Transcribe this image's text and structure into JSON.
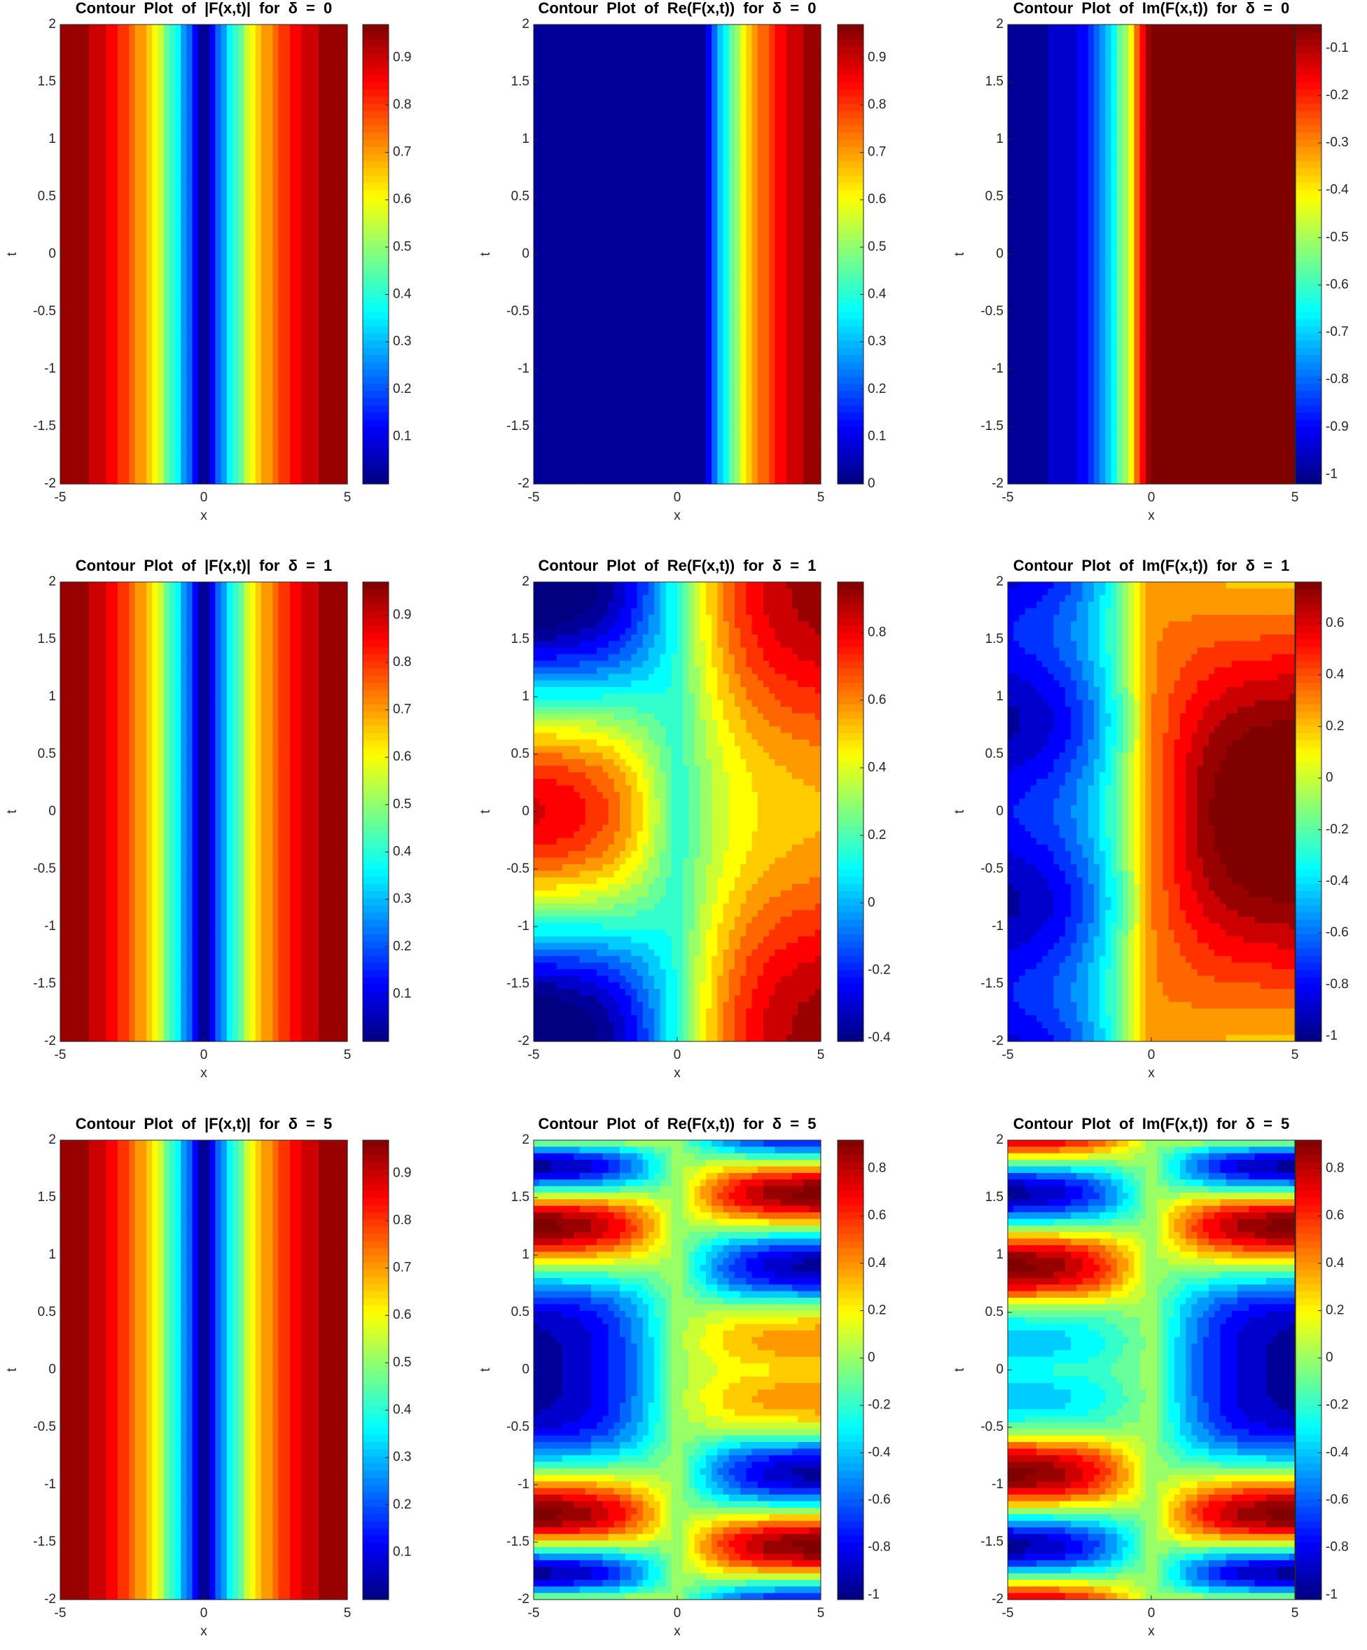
{
  "chart_data": [
    {
      "type": "contour",
      "title": "Contour Plot of |F(x,t)| for δ = 0",
      "xlabel": "x",
      "ylabel": "t",
      "xlim": [
        -5,
        5
      ],
      "xticks": [
        -5,
        0,
        5
      ],
      "ylim": [
        -2,
        2
      ],
      "yticks": [
        -2,
        -1.5,
        -1,
        -0.5,
        0,
        0.5,
        1,
        1.5,
        2
      ],
      "clim": [
        0,
        0.97
      ],
      "cticks": [
        0.1,
        0.2,
        0.3,
        0.4,
        0.5,
        0.6,
        0.7,
        0.8,
        0.9
      ],
      "colormap": "jet"
    },
    {
      "type": "contour",
      "title": "Contour Plot of Re(F(x,t)) for δ = 0",
      "xlabel": "x",
      "ylabel": "t",
      "xlim": [
        -5,
        5
      ],
      "xticks": [
        -5,
        0,
        5
      ],
      "ylim": [
        -2,
        2
      ],
      "yticks": [
        -2,
        -1.5,
        -1,
        -0.5,
        0,
        0.5,
        1,
        1.5,
        2
      ],
      "clim": [
        0,
        0.97
      ],
      "cticks": [
        0,
        0.1,
        0.2,
        0.3,
        0.4,
        0.5,
        0.6,
        0.7,
        0.8,
        0.9
      ],
      "colormap": "jet"
    },
    {
      "type": "contour",
      "title": "Contour Plot of Im(F(x,t)) for δ = 0",
      "xlabel": "x",
      "ylabel": "t",
      "xlim": [
        -5,
        5
      ],
      "xticks": [
        -5,
        0,
        5
      ],
      "ylim": [
        -2,
        2
      ],
      "yticks": [
        -2,
        -1.5,
        -1,
        -0.5,
        0,
        0.5,
        1,
        1.5,
        2
      ],
      "clim": [
        -1.02,
        -0.05
      ],
      "cticks": [
        -1,
        -0.9,
        -0.8,
        -0.7,
        -0.6,
        -0.5,
        -0.4,
        -0.3,
        -0.2,
        -0.1
      ],
      "colormap": "jet"
    },
    {
      "type": "contour",
      "title": "Contour Plot of |F(x,t)| for δ = 1",
      "xlabel": "x",
      "ylabel": "t",
      "xlim": [
        -5,
        5
      ],
      "xticks": [
        -5,
        0,
        5
      ],
      "ylim": [
        -2,
        2
      ],
      "yticks": [
        -2,
        -1.5,
        -1,
        -0.5,
        0,
        0.5,
        1,
        1.5,
        2
      ],
      "clim": [
        0,
        0.97
      ],
      "cticks": [
        0.1,
        0.2,
        0.3,
        0.4,
        0.5,
        0.6,
        0.7,
        0.8,
        0.9
      ],
      "colormap": "jet"
    },
    {
      "type": "contour",
      "title": "Contour Plot of Re(F(x,t)) for δ = 1",
      "xlabel": "x",
      "ylabel": "t",
      "xlim": [
        -5,
        5
      ],
      "xticks": [
        -5,
        0,
        5
      ],
      "ylim": [
        -2,
        2
      ],
      "yticks": [
        -2,
        -1.5,
        -1,
        -0.5,
        0,
        0.5,
        1,
        1.5,
        2
      ],
      "clim": [
        -0.41,
        0.95
      ],
      "cticks": [
        -0.4,
        -0.2,
        0,
        0.2,
        0.4,
        0.6,
        0.8
      ],
      "colormap": "jet"
    },
    {
      "type": "contour",
      "title": "Contour Plot of Im(F(x,t)) for δ = 1",
      "xlabel": "x",
      "ylabel": "t",
      "xlim": [
        -5,
        5
      ],
      "xticks": [
        -5,
        0,
        5
      ],
      "ylim": [
        -2,
        2
      ],
      "yticks": [
        -2,
        -1.5,
        -1,
        -0.5,
        0,
        0.5,
        1,
        1.5,
        2
      ],
      "clim": [
        -1.02,
        0.76
      ],
      "cticks": [
        -1,
        -0.8,
        -0.6,
        -0.4,
        -0.2,
        0,
        0.2,
        0.4,
        0.6
      ],
      "colormap": "jet"
    },
    {
      "type": "contour",
      "title": "Contour Plot of |F(x,t)| for δ = 5",
      "xlabel": "x",
      "ylabel": "t",
      "xlim": [
        -5,
        5
      ],
      "xticks": [
        -5,
        0,
        5
      ],
      "ylim": [
        -2,
        2
      ],
      "yticks": [
        -2,
        -1.5,
        -1,
        -0.5,
        0,
        0.5,
        1,
        1.5,
        2
      ],
      "clim": [
        0,
        0.97
      ],
      "cticks": [
        0.1,
        0.2,
        0.3,
        0.4,
        0.5,
        0.6,
        0.7,
        0.8,
        0.9
      ],
      "colormap": "jet"
    },
    {
      "type": "contour",
      "title": "Contour Plot of Re(F(x,t)) for δ = 5",
      "xlabel": "x",
      "ylabel": "t",
      "xlim": [
        -5,
        5
      ],
      "xticks": [
        -5,
        0,
        5
      ],
      "ylim": [
        -2,
        2
      ],
      "yticks": [
        -2,
        -1.5,
        -1,
        -0.5,
        0,
        0.5,
        1,
        1.5,
        2
      ],
      "clim": [
        -1.02,
        0.92
      ],
      "cticks": [
        -1,
        -0.8,
        -0.6,
        -0.4,
        -0.2,
        0,
        0.2,
        0.4,
        0.6,
        0.8
      ],
      "colormap": "jet"
    },
    {
      "type": "contour",
      "title": "Contour Plot of Im(F(x,t)) for δ = 5",
      "xlabel": "x",
      "ylabel": "t",
      "xlim": [
        -5,
        5
      ],
      "xticks": [
        -5,
        0,
        5
      ],
      "ylim": [
        -2,
        2
      ],
      "yticks": [
        -2,
        -1.5,
        -1,
        -0.5,
        0,
        0.5,
        1,
        1.5,
        2
      ],
      "clim": [
        -1.02,
        0.92
      ],
      "cticks": [
        -1,
        -0.8,
        -0.6,
        -0.4,
        -0.2,
        0,
        0.2,
        0.4,
        0.6,
        0.8
      ],
      "colormap": "jet"
    }
  ]
}
